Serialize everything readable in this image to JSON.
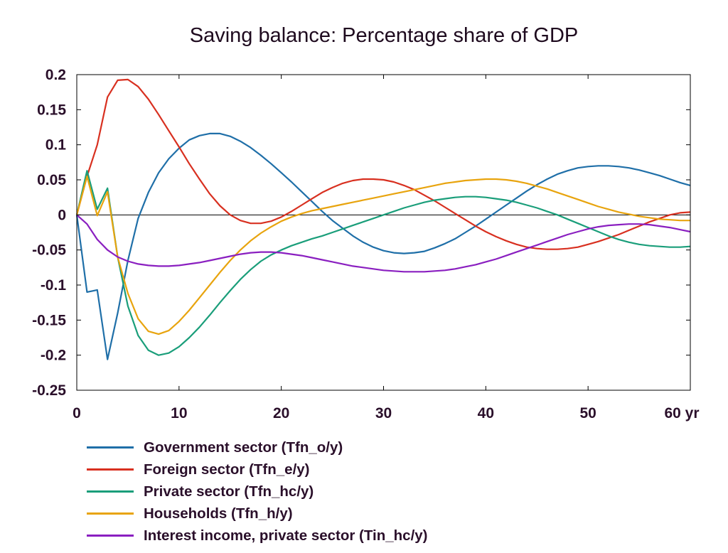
{
  "chart_data": {
    "type": "line",
    "title": "Saving balance: Percentage share of GDP",
    "xlabel": "",
    "ylabel": "",
    "x_unit": "yr",
    "xlim": [
      0,
      60
    ],
    "ylim": [
      -0.25,
      0.2
    ],
    "x_ticks": [
      0,
      10,
      20,
      30,
      40,
      50,
      60
    ],
    "x_tick_labels": [
      "0",
      "10",
      "20",
      "30",
      "40",
      "50",
      "60 yr"
    ],
    "y_ticks": [
      0.2,
      0.15,
      0.1,
      0.05,
      0,
      -0.05,
      -0.1,
      -0.15,
      -0.2,
      -0.25
    ],
    "y_tick_labels": [
      "0.2",
      "0.15",
      "0.1",
      "0.05",
      "0",
      "-0.05",
      "-0.1",
      "-0.15",
      "-0.2",
      "-0.25"
    ],
    "grid": false,
    "zero_line": true,
    "legend_position": "bottom",
    "series": [
      {
        "name": "Government sector (Tfn_o/y)",
        "color": "#1f6fa8",
        "x": [
          0,
          1,
          2,
          3,
          4,
          5,
          6,
          7,
          8,
          9,
          10,
          11,
          12,
          13,
          14,
          15,
          16,
          17,
          18,
          19,
          20,
          21,
          22,
          23,
          24,
          25,
          26,
          27,
          28,
          29,
          30,
          31,
          32,
          33,
          34,
          35,
          36,
          37,
          38,
          39,
          40,
          41,
          42,
          43,
          44,
          45,
          46,
          47,
          48,
          49,
          50,
          51,
          52,
          53,
          54,
          55,
          56,
          57,
          58,
          59,
          60
        ],
        "values": [
          0,
          -0.11,
          -0.107,
          -0.206,
          -0.14,
          -0.065,
          -0.005,
          0.032,
          0.06,
          0.08,
          0.095,
          0.107,
          0.113,
          0.116,
          0.116,
          0.112,
          0.105,
          0.096,
          0.085,
          0.073,
          0.06,
          0.047,
          0.033,
          0.019,
          0.005,
          -0.008,
          -0.019,
          -0.03,
          -0.039,
          -0.046,
          -0.051,
          -0.054,
          -0.055,
          -0.054,
          -0.052,
          -0.047,
          -0.041,
          -0.034,
          -0.025,
          -0.016,
          -0.006,
          0.004,
          0.014,
          0.024,
          0.034,
          0.043,
          0.051,
          0.058,
          0.063,
          0.067,
          0.069,
          0.07,
          0.07,
          0.069,
          0.067,
          0.064,
          0.06,
          0.056,
          0.051,
          0.046,
          0.042
        ]
      },
      {
        "name": "Foreign sector (Tfn_e/y)",
        "color": "#d83020",
        "x": [
          0,
          1,
          2,
          3,
          4,
          5,
          6,
          7,
          8,
          9,
          10,
          11,
          12,
          13,
          14,
          15,
          16,
          17,
          18,
          19,
          20,
          21,
          22,
          23,
          24,
          25,
          26,
          27,
          28,
          29,
          30,
          31,
          32,
          33,
          34,
          35,
          36,
          37,
          38,
          39,
          40,
          41,
          42,
          43,
          44,
          45,
          46,
          47,
          48,
          49,
          50,
          51,
          52,
          53,
          54,
          55,
          56,
          57,
          58,
          59,
          60
        ],
        "values": [
          0,
          0.055,
          0.1,
          0.168,
          0.192,
          0.193,
          0.183,
          0.165,
          0.143,
          0.12,
          0.097,
          0.073,
          0.051,
          0.03,
          0.013,
          0.0,
          -0.008,
          -0.012,
          -0.012,
          -0.009,
          -0.003,
          0.005,
          0.014,
          0.023,
          0.032,
          0.039,
          0.045,
          0.049,
          0.051,
          0.051,
          0.05,
          0.047,
          0.042,
          0.036,
          0.028,
          0.02,
          0.011,
          0.002,
          -0.007,
          -0.016,
          -0.024,
          -0.031,
          -0.037,
          -0.042,
          -0.046,
          -0.048,
          -0.049,
          -0.049,
          -0.048,
          -0.046,
          -0.042,
          -0.038,
          -0.033,
          -0.028,
          -0.022,
          -0.016,
          -0.01,
          -0.005,
          0.0,
          0.003,
          0.004
        ]
      },
      {
        "name": "Private sector (Tfn_hc/y)",
        "color": "#1a9e7a",
        "x": [
          0,
          1,
          2,
          3,
          4,
          5,
          6,
          7,
          8,
          9,
          10,
          11,
          12,
          13,
          14,
          15,
          16,
          17,
          18,
          19,
          20,
          21,
          22,
          23,
          24,
          25,
          26,
          27,
          28,
          29,
          30,
          31,
          32,
          33,
          34,
          35,
          36,
          37,
          38,
          39,
          40,
          41,
          42,
          43,
          44,
          45,
          46,
          47,
          48,
          49,
          50,
          51,
          52,
          53,
          54,
          55,
          56,
          57,
          58,
          59,
          60
        ],
        "values": [
          0,
          0.063,
          0.008,
          0.038,
          -0.06,
          -0.13,
          -0.172,
          -0.193,
          -0.2,
          -0.197,
          -0.188,
          -0.175,
          -0.16,
          -0.143,
          -0.125,
          -0.108,
          -0.092,
          -0.078,
          -0.066,
          -0.057,
          -0.05,
          -0.044,
          -0.039,
          -0.034,
          -0.03,
          -0.025,
          -0.02,
          -0.015,
          -0.01,
          -0.005,
          0.0,
          0.005,
          0.01,
          0.014,
          0.018,
          0.021,
          0.023,
          0.025,
          0.026,
          0.026,
          0.025,
          0.023,
          0.021,
          0.018,
          0.014,
          0.01,
          0.005,
          0.0,
          -0.006,
          -0.012,
          -0.018,
          -0.024,
          -0.03,
          -0.035,
          -0.039,
          -0.042,
          -0.044,
          -0.045,
          -0.046,
          -0.046,
          -0.045
        ]
      },
      {
        "name": "Households (Tfn_h/y)",
        "color": "#e8a40e",
        "x": [
          0,
          1,
          2,
          3,
          4,
          5,
          6,
          7,
          8,
          9,
          10,
          11,
          12,
          13,
          14,
          15,
          16,
          17,
          18,
          19,
          20,
          21,
          22,
          23,
          24,
          25,
          26,
          27,
          28,
          29,
          30,
          31,
          32,
          33,
          34,
          35,
          36,
          37,
          38,
          39,
          40,
          41,
          42,
          43,
          44,
          45,
          46,
          47,
          48,
          49,
          50,
          51,
          52,
          53,
          54,
          55,
          56,
          57,
          58,
          59,
          60
        ],
        "values": [
          0,
          0.055,
          -0.001,
          0.033,
          -0.06,
          -0.112,
          -0.148,
          -0.166,
          -0.17,
          -0.165,
          -0.152,
          -0.136,
          -0.118,
          -0.1,
          -0.082,
          -0.065,
          -0.05,
          -0.037,
          -0.026,
          -0.017,
          -0.009,
          -0.003,
          0.002,
          0.006,
          0.009,
          0.012,
          0.015,
          0.018,
          0.021,
          0.024,
          0.027,
          0.03,
          0.033,
          0.036,
          0.039,
          0.042,
          0.045,
          0.047,
          0.049,
          0.05,
          0.051,
          0.051,
          0.05,
          0.048,
          0.045,
          0.041,
          0.037,
          0.032,
          0.027,
          0.022,
          0.017,
          0.012,
          0.008,
          0.004,
          0.001,
          -0.002,
          -0.004,
          -0.006,
          -0.007,
          -0.008,
          -0.008
        ]
      },
      {
        "name": "Interest income, private sector (Tin_hc/y)",
        "color": "#8a1fc0",
        "x": [
          0,
          1,
          2,
          3,
          4,
          5,
          6,
          7,
          8,
          9,
          10,
          11,
          12,
          13,
          14,
          15,
          16,
          17,
          18,
          19,
          20,
          21,
          22,
          23,
          24,
          25,
          26,
          27,
          28,
          29,
          30,
          31,
          32,
          33,
          34,
          35,
          36,
          37,
          38,
          39,
          40,
          41,
          42,
          43,
          44,
          45,
          46,
          47,
          48,
          49,
          50,
          51,
          52,
          53,
          54,
          55,
          56,
          57,
          58,
          59,
          60
        ],
        "values": [
          0,
          -0.013,
          -0.035,
          -0.05,
          -0.06,
          -0.066,
          -0.07,
          -0.072,
          -0.073,
          -0.073,
          -0.072,
          -0.07,
          -0.068,
          -0.065,
          -0.062,
          -0.059,
          -0.056,
          -0.054,
          -0.053,
          -0.053,
          -0.054,
          -0.056,
          -0.058,
          -0.061,
          -0.064,
          -0.067,
          -0.07,
          -0.073,
          -0.075,
          -0.077,
          -0.079,
          -0.08,
          -0.081,
          -0.081,
          -0.081,
          -0.08,
          -0.079,
          -0.077,
          -0.074,
          -0.071,
          -0.067,
          -0.063,
          -0.058,
          -0.053,
          -0.048,
          -0.043,
          -0.038,
          -0.033,
          -0.028,
          -0.024,
          -0.02,
          -0.017,
          -0.015,
          -0.014,
          -0.013,
          -0.013,
          -0.014,
          -0.016,
          -0.018,
          -0.021,
          -0.024
        ]
      }
    ]
  }
}
